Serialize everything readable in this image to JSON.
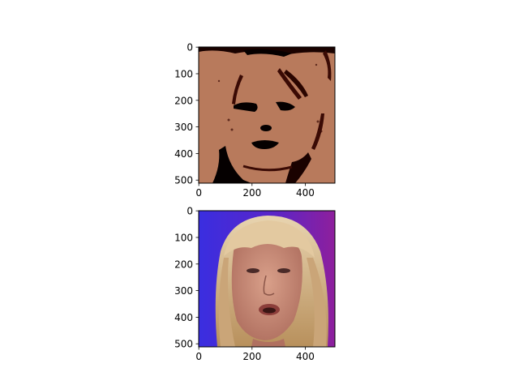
{
  "figure": {
    "background": "#ffffff"
  },
  "chart_data": [
    {
      "type": "image",
      "description_role": "filtered/posterized face image (dark red-brown tones)",
      "title": "",
      "xlabel": "",
      "ylabel": "",
      "xlim": [
        0,
        511
      ],
      "ylim": [
        511,
        0
      ],
      "x_ticks": [
        0,
        200,
        400
      ],
      "y_ticks": [
        0,
        100,
        200,
        300,
        400,
        500
      ],
      "x_tick_labels": [
        "0",
        "200",
        "400"
      ],
      "y_tick_labels": [
        "0",
        "100",
        "200",
        "300",
        "400",
        "500"
      ],
      "palette": {
        "base": "#b87a5c",
        "dark": "#3a0a04",
        "black": "#050000"
      }
    },
    {
      "type": "image",
      "description_role": "original color face photograph",
      "title": "",
      "xlabel": "",
      "ylabel": "",
      "xlim": [
        0,
        511
      ],
      "ylim": [
        511,
        0
      ],
      "x_ticks": [
        0,
        200,
        400
      ],
      "y_ticks": [
        0,
        100,
        200,
        300,
        400,
        500
      ],
      "x_tick_labels": [
        "0",
        "200",
        "400"
      ],
      "y_tick_labels": [
        "0",
        "100",
        "200",
        "300",
        "400",
        "500"
      ],
      "palette": {
        "bg_left": "#3c2fd8",
        "bg_right": "#8a1f9e",
        "hair": "#d9b98f",
        "skin": "#c98f78",
        "lips": "#8c3e3a"
      }
    }
  ]
}
